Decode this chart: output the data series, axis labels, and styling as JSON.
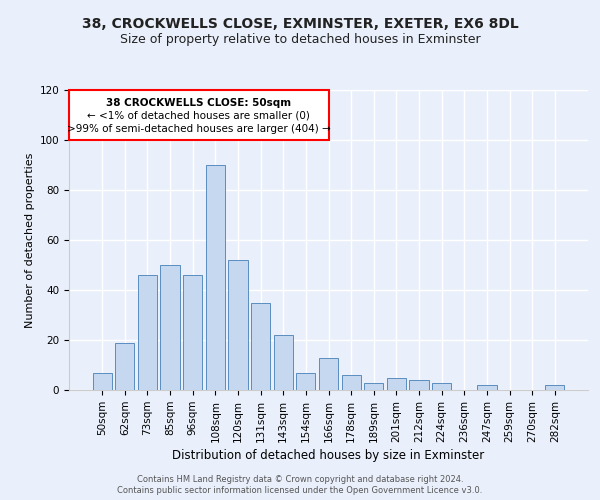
{
  "title1": "38, CROCKWELLS CLOSE, EXMINSTER, EXETER, EX6 8DL",
  "title2": "Size of property relative to detached houses in Exminster",
  "xlabel": "Distribution of detached houses by size in Exminster",
  "ylabel": "Number of detached properties",
  "bar_labels": [
    "50sqm",
    "62sqm",
    "73sqm",
    "85sqm",
    "96sqm",
    "108sqm",
    "120sqm",
    "131sqm",
    "143sqm",
    "154sqm",
    "166sqm",
    "178sqm",
    "189sqm",
    "201sqm",
    "212sqm",
    "224sqm",
    "236sqm",
    "247sqm",
    "259sqm",
    "270sqm",
    "282sqm"
  ],
  "bar_values": [
    7,
    19,
    46,
    50,
    46,
    90,
    52,
    35,
    22,
    7,
    13,
    6,
    3,
    5,
    4,
    3,
    0,
    2,
    0,
    0,
    2
  ],
  "bar_color": "#c5d8f0",
  "bar_edge_color": "#5a8ec0",
  "ylim": [
    0,
    120
  ],
  "yticks": [
    0,
    20,
    40,
    60,
    80,
    100,
    120
  ],
  "ann_line1": "38 CROCKWELLS CLOSE: 50sqm",
  "ann_line2": "← <1% of detached houses are smaller (0)",
  "ann_line3": ">99% of semi-detached houses are larger (404) →",
  "footer1": "Contains HM Land Registry data © Crown copyright and database right 2024.",
  "footer2": "Contains public sector information licensed under the Open Government Licence v3.0.",
  "bg_color": "#eaf0fb",
  "plot_bg_color": "#eaf0fb",
  "grid_color": "#ffffff",
  "title1_fontsize": 10,
  "title2_fontsize": 9,
  "xlabel_fontsize": 8.5,
  "ylabel_fontsize": 8,
  "tick_fontsize": 7.5,
  "ann_fontsize": 7.5,
  "footer_fontsize": 6
}
